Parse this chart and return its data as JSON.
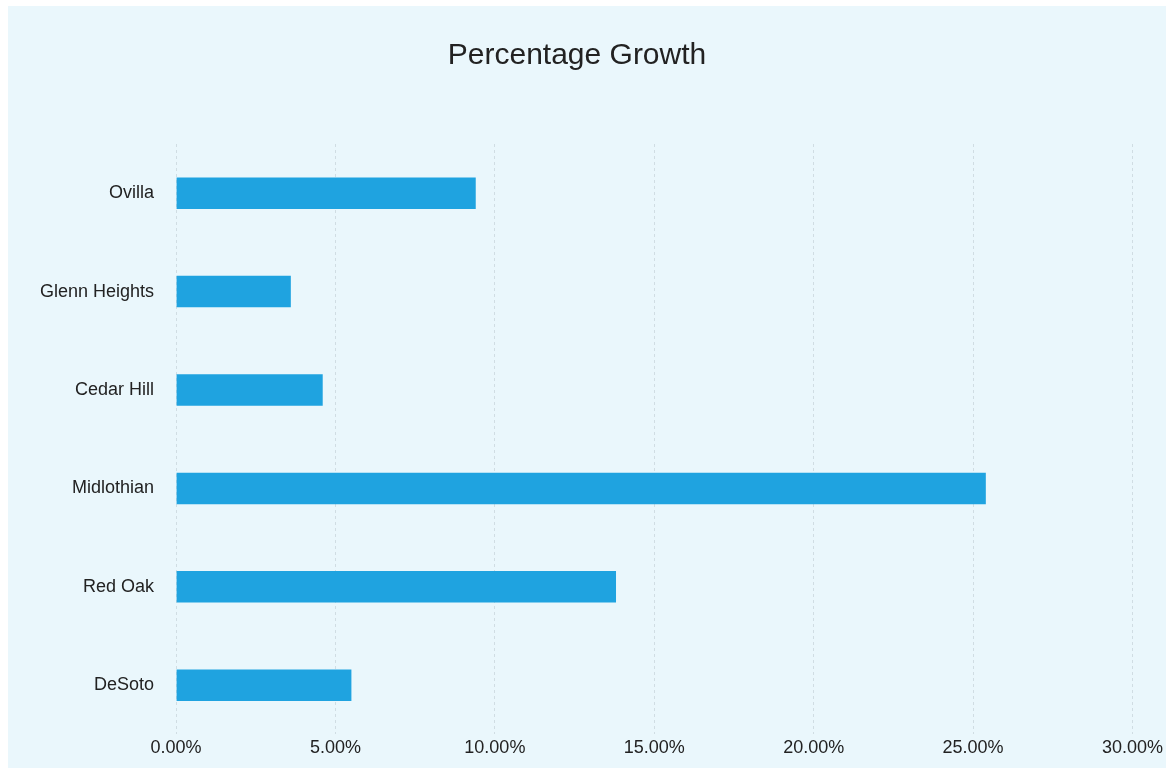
{
  "chart_data": {
    "type": "bar",
    "title": "Percentage Growth",
    "orientation": "horizontal",
    "categories": [
      "Ovilla",
      "Glenn Heights",
      "Cedar Hill",
      "Midlothian",
      "Red Oak",
      "DeSoto"
    ],
    "values": [
      9.4,
      3.6,
      4.6,
      25.4,
      13.8,
      5.5
    ],
    "color": "#1fa3e0",
    "xlim": [
      0,
      30
    ],
    "xticks": [
      {
        "value": 0,
        "label": "0.00%"
      },
      {
        "value": 5,
        "label": "5.00%"
      },
      {
        "value": 10,
        "label": "10.00%"
      },
      {
        "value": 15,
        "label": "15.00%"
      },
      {
        "value": 20,
        "label": "20.00%"
      },
      {
        "value": 25,
        "label": "25.00%"
      },
      {
        "value": 30,
        "label": "30.00%"
      }
    ],
    "grid": "x",
    "legend": false
  }
}
